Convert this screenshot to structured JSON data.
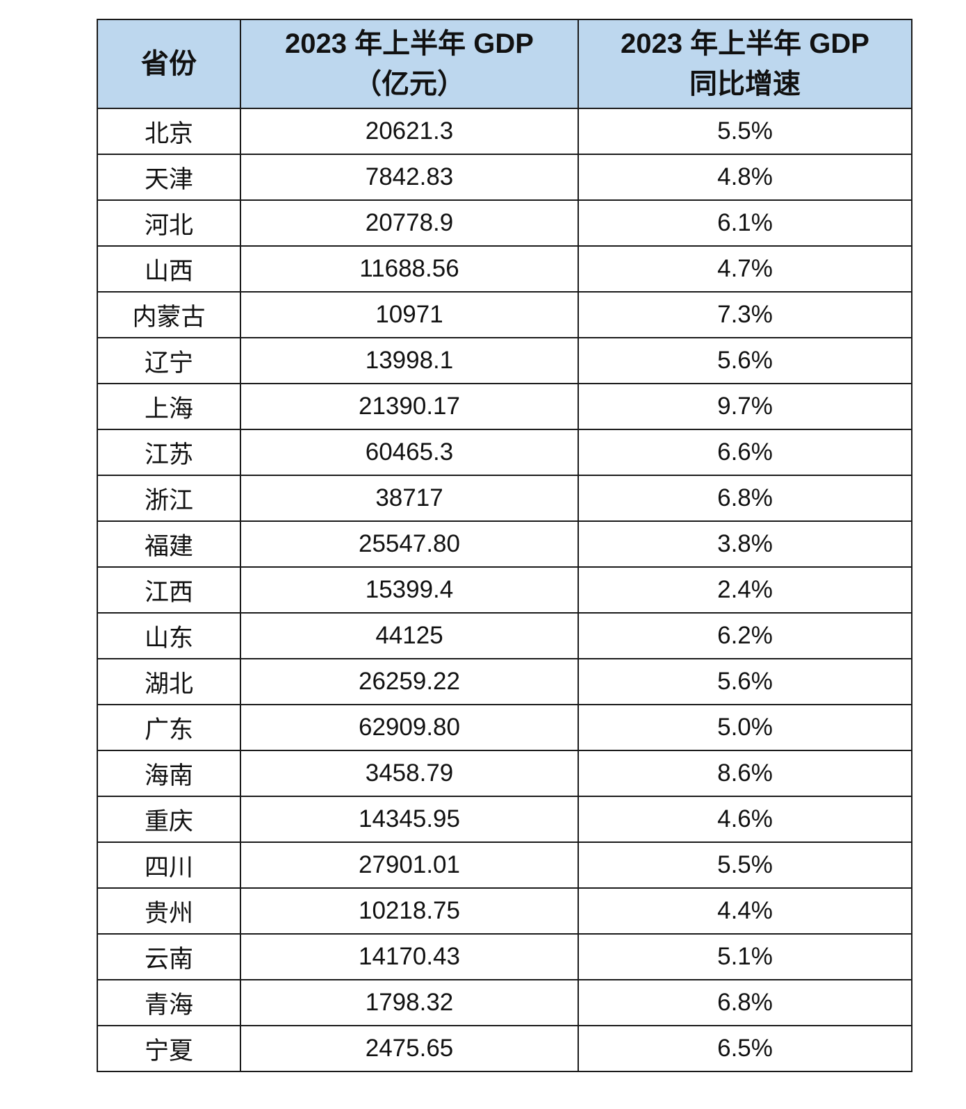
{
  "table": {
    "header_color": "#bdd7ee",
    "headers": [
      {
        "line1": "省份",
        "line2": ""
      },
      {
        "line1": "2023 年上半年 GDP",
        "line2": "（亿元）"
      },
      {
        "line1": "2023 年上半年 GDP",
        "line2": "同比增速"
      }
    ],
    "rows": [
      [
        "北京",
        "20621.3",
        "5.5%"
      ],
      [
        "天津",
        "7842.83",
        "4.8%"
      ],
      [
        "河北",
        "20778.9",
        "6.1%"
      ],
      [
        "山西",
        "11688.56",
        "4.7%"
      ],
      [
        "内蒙古",
        "10971",
        "7.3%"
      ],
      [
        "辽宁",
        "13998.1",
        "5.6%"
      ],
      [
        "上海",
        "21390.17",
        "9.7%"
      ],
      [
        "江苏",
        "60465.3",
        "6.6%"
      ],
      [
        "浙江",
        "38717",
        "6.8%"
      ],
      [
        "福建",
        "25547.80",
        "3.8%"
      ],
      [
        "江西",
        "15399.4",
        "2.4%"
      ],
      [
        "山东",
        "44125",
        "6.2%"
      ],
      [
        "湖北",
        "26259.22",
        "5.6%"
      ],
      [
        "广东",
        "62909.80",
        "5.0%"
      ],
      [
        "海南",
        "3458.79",
        "8.6%"
      ],
      [
        "重庆",
        "14345.95",
        "4.6%"
      ],
      [
        "四川",
        "27901.01",
        "5.5%"
      ],
      [
        "贵州",
        "10218.75",
        "4.4%"
      ],
      [
        "云南",
        "14170.43",
        "5.1%"
      ],
      [
        "青海",
        "1798.32",
        "6.8%"
      ],
      [
        "宁夏",
        "2475.65",
        "6.5%"
      ]
    ]
  }
}
